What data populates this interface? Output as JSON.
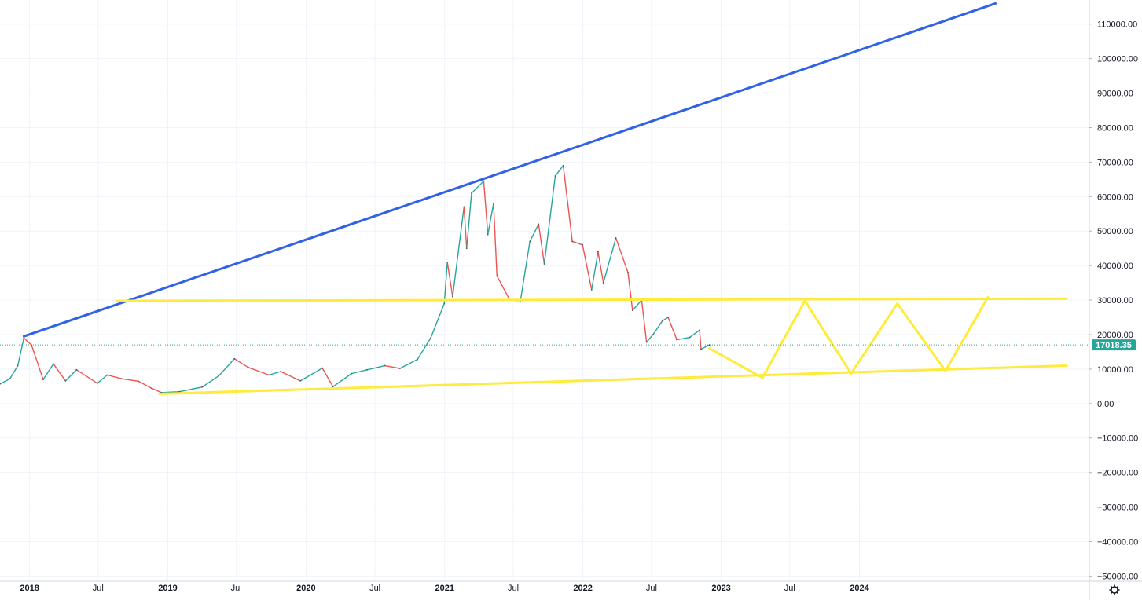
{
  "chart_data": {
    "type": "line",
    "title": "",
    "xlabel": "",
    "ylabel": "",
    "xlim": [
      "2017-10-15",
      "2025-08-30"
    ],
    "ylim": [
      -51500,
      117000
    ],
    "grid": true,
    "y_ticks": [
      110000,
      100000,
      90000,
      80000,
      70000,
      60000,
      50000,
      40000,
      30000,
      20000,
      10000,
      0,
      -10000,
      -20000,
      -30000,
      -40000,
      -50000
    ],
    "y_tick_labels": [
      "110000.00",
      "100000.00",
      "90000.00",
      "80000.00",
      "70000.00",
      "60000.00",
      "50000.00",
      "40000.00",
      "30000.00",
      "20000.00",
      "10000.00",
      "0.00",
      "−10000.00",
      "−20000.00",
      "−30000.00",
      "−40000.00",
      "−50000.00"
    ],
    "x_ticks": [
      {
        "date": "2018-01-01",
        "label": "2018"
      },
      {
        "date": "2018-07-01",
        "label": "Jul"
      },
      {
        "date": "2019-01-01",
        "label": "2019"
      },
      {
        "date": "2019-07-01",
        "label": "Jul"
      },
      {
        "date": "2020-01-01",
        "label": "2020"
      },
      {
        "date": "2020-07-01",
        "label": "Jul"
      },
      {
        "date": "2021-01-01",
        "label": "2021"
      },
      {
        "date": "2021-07-01",
        "label": "Jul"
      },
      {
        "date": "2022-01-01",
        "label": "2022"
      },
      {
        "date": "2022-07-01",
        "label": "Jul"
      },
      {
        "date": "2023-01-01",
        "label": "2023"
      },
      {
        "date": "2023-07-01",
        "label": "Jul"
      },
      {
        "date": "2024-01-01",
        "label": "2024"
      }
    ],
    "series": [
      {
        "values": [
          [
            "2017-10-15",
            5700
          ],
          [
            "2017-11-10",
            7200
          ],
          [
            "2017-12-01",
            11000
          ],
          [
            "2017-12-17",
            19000
          ],
          [
            "2018-01-06",
            17000
          ],
          [
            "2018-02-06",
            7000
          ],
          [
            "2018-03-05",
            11500
          ],
          [
            "2018-04-06",
            6600
          ],
          [
            "2018-05-05",
            9800
          ],
          [
            "2018-06-29",
            5900
          ],
          [
            "2018-07-25",
            8300
          ],
          [
            "2018-09-01",
            7200
          ],
          [
            "2018-10-15",
            6500
          ],
          [
            "2018-11-20",
            4400
          ],
          [
            "2018-12-15",
            3200
          ],
          [
            "2019-02-01",
            3450
          ],
          [
            "2019-04-02",
            4800
          ],
          [
            "2019-05-15",
            8000
          ],
          [
            "2019-06-26",
            13000
          ],
          [
            "2019-08-01",
            10500
          ],
          [
            "2019-09-25",
            8300
          ],
          [
            "2019-10-26",
            9300
          ],
          [
            "2019-12-17",
            6600
          ],
          [
            "2020-02-13",
            10300
          ],
          [
            "2020-03-12",
            4900
          ],
          [
            "2020-04-30",
            8700
          ],
          [
            "2020-06-10",
            9800
          ],
          [
            "2020-07-27",
            11000
          ],
          [
            "2020-09-05",
            10200
          ],
          [
            "2020-10-21",
            12800
          ],
          [
            "2020-11-25",
            19000
          ],
          [
            "2020-12-31",
            29000
          ],
          [
            "2021-01-08",
            41000
          ],
          [
            "2021-01-22",
            31000
          ],
          [
            "2021-02-21",
            57000
          ],
          [
            "2021-02-28",
            45000
          ],
          [
            "2021-03-13",
            61000
          ],
          [
            "2021-04-14",
            64500
          ],
          [
            "2021-04-25",
            49000
          ],
          [
            "2021-05-10",
            58000
          ],
          [
            "2021-05-19",
            37000
          ],
          [
            "2021-06-22",
            30000
          ],
          [
            "2021-07-20",
            29800
          ],
          [
            "2021-08-14",
            47000
          ],
          [
            "2021-09-06",
            52000
          ],
          [
            "2021-09-21",
            40500
          ],
          [
            "2021-10-20",
            66000
          ],
          [
            "2021-11-10",
            69000
          ],
          [
            "2021-12-04",
            47000
          ],
          [
            "2021-12-31",
            46000
          ],
          [
            "2022-01-24",
            33000
          ],
          [
            "2022-02-10",
            44000
          ],
          [
            "2022-02-24",
            35000
          ],
          [
            "2022-03-29",
            48000
          ],
          [
            "2022-04-30",
            38000
          ],
          [
            "2022-05-12",
            27000
          ],
          [
            "2022-06-05",
            30000
          ],
          [
            "2022-06-18",
            17800
          ],
          [
            "2022-07-05",
            20000
          ],
          [
            "2022-07-30",
            24000
          ],
          [
            "2022-08-14",
            25000
          ],
          [
            "2022-09-06",
            18500
          ],
          [
            "2022-10-10",
            19200
          ],
          [
            "2022-11-05",
            21300
          ],
          [
            "2022-11-09",
            15800
          ],
          [
            "2022-12-01",
            17018
          ]
        ]
      }
    ],
    "trendlines": [
      {
        "color": "#2f62e6",
        "points": [
          [
            "2017-12-17",
            19500
          ],
          [
            "2024-12-25",
            116000
          ]
        ]
      },
      {
        "color": "#ffeb3b",
        "points": [
          [
            "2018-08-20",
            29800
          ],
          [
            "2025-07-01",
            30400
          ]
        ]
      },
      {
        "color": "#ffeb3b",
        "points": [
          [
            "2018-12-10",
            2800
          ],
          [
            "2025-07-01",
            11000
          ]
        ]
      },
      {
        "color": "#ffeb3b",
        "points": [
          [
            "2022-12-01",
            16000
          ],
          [
            "2023-04-20",
            7500
          ],
          [
            "2023-08-10",
            29800
          ],
          [
            "2023-12-10",
            8700
          ],
          [
            "2024-04-10",
            29000
          ],
          [
            "2024-08-15",
            9500
          ],
          [
            "2024-12-05",
            30800
          ]
        ]
      }
    ],
    "last_price": {
      "label": "17018.35",
      "value": 17018.35,
      "color": "#26a69a"
    },
    "gear_icon": "gear-icon"
  }
}
